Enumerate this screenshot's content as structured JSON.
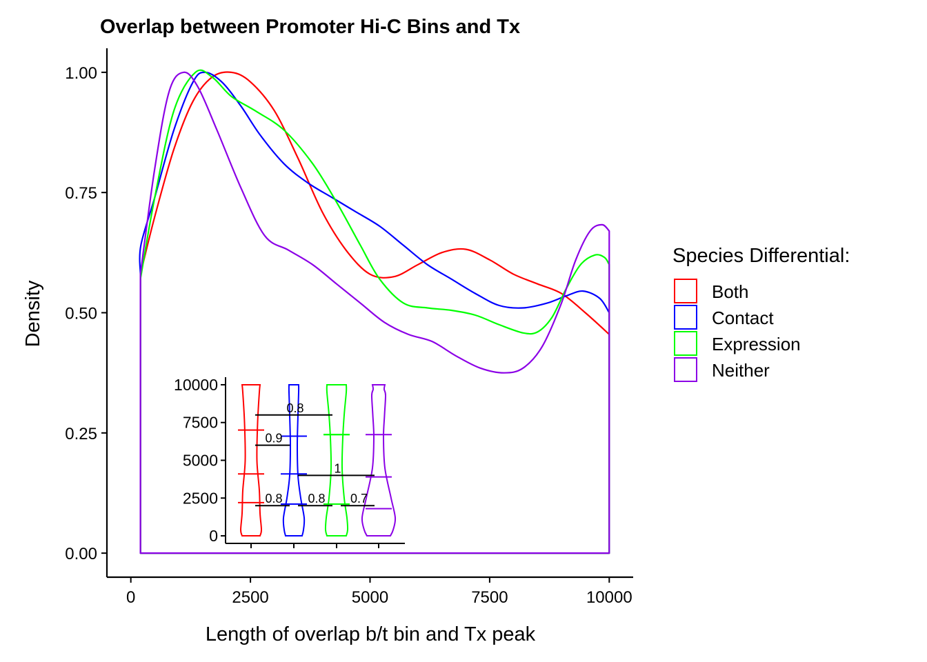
{
  "chart_data": [
    {
      "type": "area",
      "title": "Overlap between Promoter Hi-C Bins and Tx",
      "xlabel": "Length of overlap b/t bin and Tx peak",
      "ylabel": "Density",
      "xlim": [
        -500,
        10500
      ],
      "ylim": [
        -0.05,
        1.05
      ],
      "xticks": [
        0,
        2500,
        5000,
        7500,
        10000
      ],
      "xtick_labels": [
        "0",
        "2500",
        "5000",
        "7500",
        "10000"
      ],
      "yticks": [
        0,
        0.25,
        0.5,
        0.75,
        1
      ],
      "ytick_labels": [
        "0.00",
        "0.25",
        "0.50",
        "0.75",
        "1.00"
      ],
      "grid": false,
      "legend": {
        "title": "Species Differential:",
        "position": "right",
        "entries": [
          "Both",
          "Contact",
          "Expression",
          "Neither"
        ]
      },
      "series": [
        {
          "name": "Both",
          "color": "#FF0000",
          "x": [
            200,
            500,
            900,
            1300,
            1700,
            2100,
            2500,
            3000,
            3500,
            4000,
            4500,
            5000,
            5500,
            6000,
            6500,
            7000,
            7500,
            8000,
            8500,
            9000,
            9500,
            10000
          ],
          "y": [
            0.58,
            0.7,
            0.84,
            0.94,
            0.99,
            1.0,
            0.98,
            0.92,
            0.82,
            0.71,
            0.63,
            0.58,
            0.575,
            0.6,
            0.625,
            0.632,
            0.61,
            0.58,
            0.56,
            0.54,
            0.5,
            0.455
          ]
        },
        {
          "name": "Contact",
          "color": "#0000FF",
          "x": [
            200,
            210,
            500,
            900,
            1300,
            1550,
            1900,
            2300,
            2700,
            3200,
            3700,
            4200,
            4700,
            5200,
            5700,
            6200,
            6700,
            7200,
            7700,
            8200,
            8700,
            9100,
            9450,
            9800,
            10000
          ],
          "y": [
            0.58,
            0.64,
            0.74,
            0.88,
            0.98,
            1.0,
            0.98,
            0.93,
            0.87,
            0.81,
            0.77,
            0.74,
            0.71,
            0.68,
            0.64,
            0.6,
            0.57,
            0.54,
            0.515,
            0.51,
            0.52,
            0.535,
            0.545,
            0.53,
            0.5
          ]
        },
        {
          "name": "Expression",
          "color": "#00FF00",
          "x": [
            200,
            500,
            900,
            1350,
            1700,
            2100,
            2600,
            3200,
            3800,
            4300,
            4800,
            5200,
            5700,
            6200,
            6700,
            7200,
            7700,
            8200,
            8500,
            8800,
            9100,
            9400,
            9700,
            9900,
            10000
          ],
          "y": [
            0.57,
            0.74,
            0.92,
            1.0,
            0.99,
            0.95,
            0.92,
            0.88,
            0.81,
            0.73,
            0.64,
            0.57,
            0.52,
            0.51,
            0.505,
            0.495,
            0.475,
            0.458,
            0.46,
            0.49,
            0.55,
            0.6,
            0.62,
            0.615,
            0.6
          ]
        },
        {
          "name": "Neither",
          "color": "#8B00E6",
          "x": [
            200,
            500,
            800,
            1100,
            1400,
            1800,
            2300,
            2800,
            3300,
            3800,
            4300,
            4800,
            5300,
            5800,
            6300,
            6800,
            7300,
            7800,
            8200,
            8600,
            9000,
            9300,
            9600,
            9850,
            10000
          ],
          "y": [
            0.58,
            0.8,
            0.96,
            1.0,
            0.97,
            0.88,
            0.76,
            0.66,
            0.63,
            0.6,
            0.56,
            0.52,
            0.48,
            0.455,
            0.44,
            0.41,
            0.385,
            0.375,
            0.385,
            0.43,
            0.52,
            0.61,
            0.67,
            0.683,
            0.67
          ]
        }
      ]
    },
    {
      "type": "violin",
      "title": "",
      "xlabel": "",
      "ylabel": "",
      "ylim": [
        -500,
        10500
      ],
      "yticks": [
        0,
        2500,
        5000,
        7500,
        10000
      ],
      "ytick_labels": [
        "0",
        "2500",
        "5000",
        "7500",
        "10000"
      ],
      "categories": [
        "Both",
        "Contact",
        "Expression",
        "Neither"
      ],
      "colors": [
        "#FF0000",
        "#0000FF",
        "#00FF00",
        "#8B00E6"
      ],
      "quantiles": [
        [
          2200,
          4100,
          7000
        ],
        [
          2100,
          4100,
          6600
        ],
        [
          2100,
          6700,
          6700
        ],
        [
          1800,
          3900,
          6700
        ]
      ],
      "comparisons": [
        {
          "from": "Both",
          "to": "Expression",
          "y": 8000,
          "label": "0.8"
        },
        {
          "from": "Both",
          "to": "Contact",
          "y": 6000,
          "label": "0.9"
        },
        {
          "from": "Contact",
          "to": "Neither",
          "y": 4000,
          "label": "1"
        },
        {
          "from": "Both",
          "to": "Contact",
          "y": 2000,
          "label": "0.8"
        },
        {
          "from": "Contact",
          "to": "Expression",
          "y": 2000,
          "label": "0.8"
        },
        {
          "from": "Expression",
          "to": "Neither",
          "y": 2000,
          "label": "0.7"
        }
      ]
    }
  ]
}
